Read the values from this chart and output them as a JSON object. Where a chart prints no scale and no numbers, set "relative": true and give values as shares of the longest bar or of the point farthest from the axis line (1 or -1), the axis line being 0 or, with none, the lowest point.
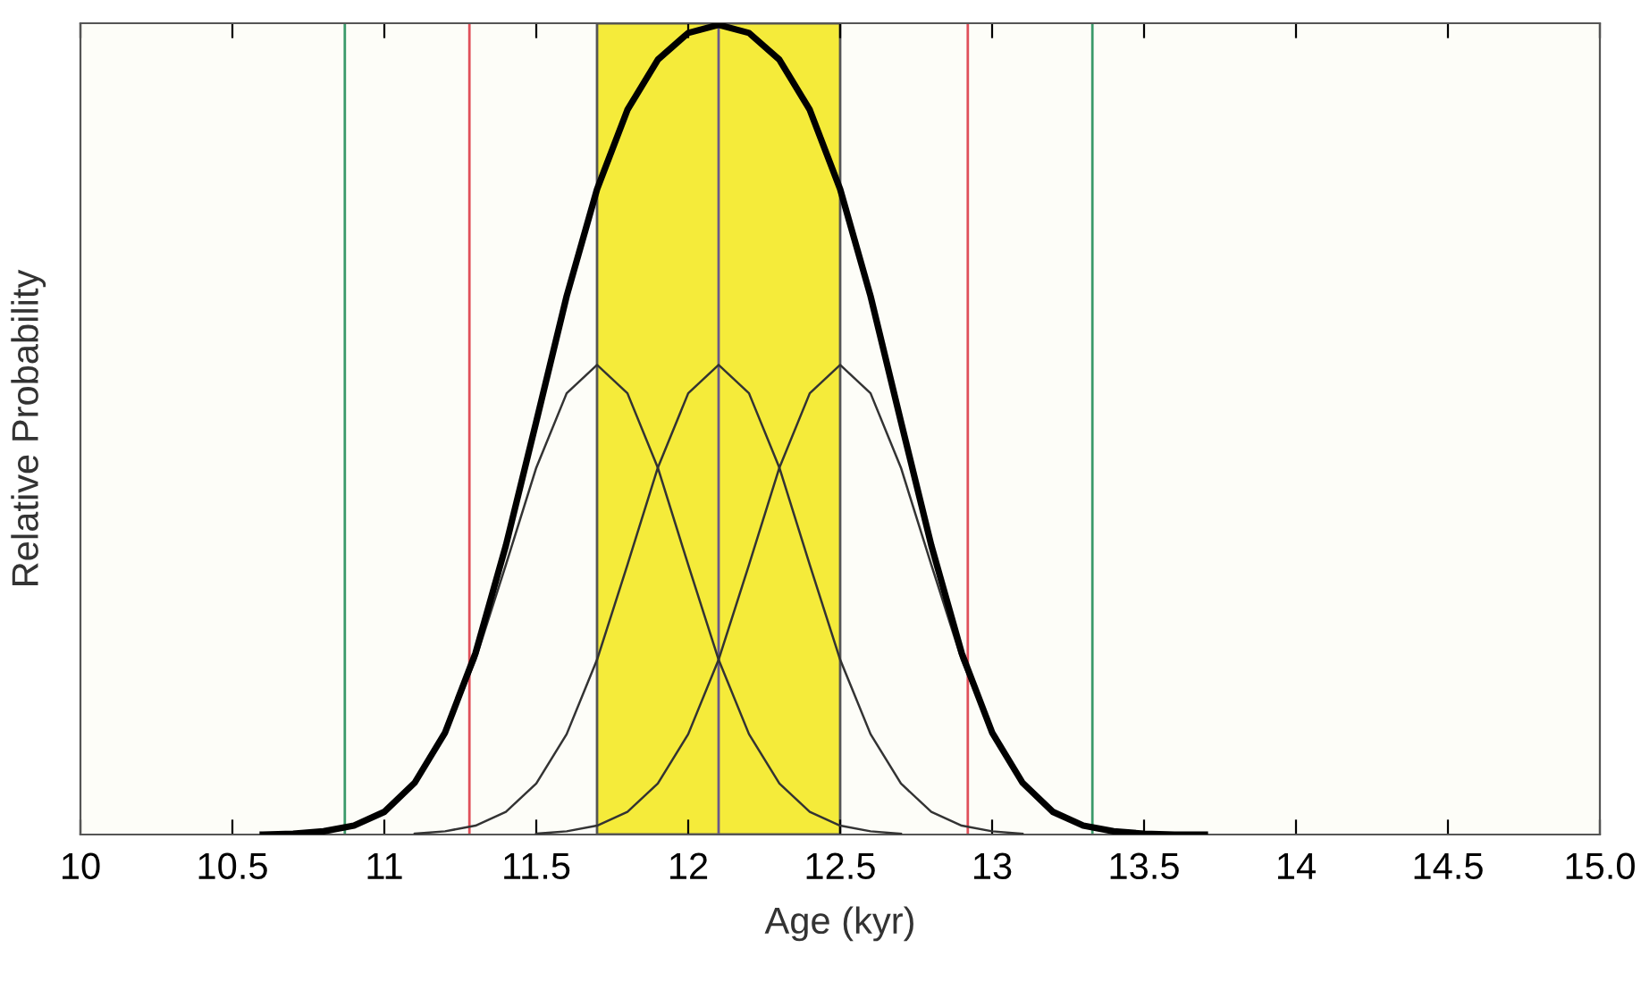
{
  "chart_data": {
    "type": "line",
    "xlabel": "Age (kyr)",
    "ylabel": "Relative Probability",
    "relative": true,
    "xlim": [
      10,
      15
    ],
    "xticks": [
      10,
      10.5,
      11,
      11.5,
      12,
      12.5,
      13,
      13.5,
      14,
      14.5,
      {
        "value": 15,
        "label": "15.0"
      }
    ],
    "tick_labels": "x",
    "grid": false,
    "marker": "none",
    "line_style": "solid",
    "series": [
      {
        "color": "#000000",
        "x": [
          10.6,
          10.7,
          10.8,
          10.9,
          11.0,
          11.1,
          11.2,
          11.3,
          11.4,
          11.5,
          11.6,
          11.7,
          11.8,
          11.9,
          12.0,
          12.1,
          12.2,
          12.3,
          12.4,
          12.5,
          12.6,
          12.7,
          12.8,
          12.9,
          13.0,
          13.1,
          13.2,
          13.3,
          13.4,
          13.5,
          13.6,
          13.7
        ],
        "values": [
          0.0,
          0.001,
          0.004,
          0.011,
          0.028,
          0.064,
          0.126,
          0.224,
          0.357,
          0.51,
          0.665,
          0.797,
          0.895,
          0.957,
          0.99,
          1.0,
          0.99,
          0.957,
          0.895,
          0.797,
          0.665,
          0.51,
          0.357,
          0.224,
          0.126,
          0.064,
          0.028,
          0.011,
          0.004,
          0.001,
          0.0,
          0.0
        ]
      },
      {
        "color": "#333333",
        "x": [
          10.7,
          10.8,
          10.9,
          11.0,
          11.1,
          11.2,
          11.3,
          11.4,
          11.5,
          11.6,
          11.7,
          11.8,
          11.9,
          12.0,
          12.1,
          12.2,
          12.3,
          12.4,
          12.5,
          12.6,
          12.7
        ],
        "values": [
          0.001,
          0.004,
          0.011,
          0.028,
          0.063,
          0.124,
          0.216,
          0.333,
          0.453,
          0.545,
          0.58,
          0.545,
          0.453,
          0.333,
          0.216,
          0.124,
          0.063,
          0.028,
          0.011,
          0.004,
          0.001
        ]
      },
      {
        "color": "#333333",
        "x": [
          11.1,
          11.2,
          11.3,
          11.4,
          11.5,
          11.6,
          11.7,
          11.8,
          11.9,
          12.0,
          12.1,
          12.2,
          12.3,
          12.4,
          12.5,
          12.6,
          12.7,
          12.8,
          12.9,
          13.0,
          13.1
        ],
        "values": [
          0.001,
          0.004,
          0.011,
          0.028,
          0.063,
          0.124,
          0.216,
          0.333,
          0.453,
          0.545,
          0.58,
          0.545,
          0.453,
          0.333,
          0.216,
          0.124,
          0.063,
          0.028,
          0.011,
          0.004,
          0.001
        ]
      },
      {
        "color": "#333333",
        "x": [
          11.5,
          11.6,
          11.7,
          11.8,
          11.9,
          12.0,
          12.1,
          12.2,
          12.3,
          12.4,
          12.5,
          12.6,
          12.7,
          12.8,
          12.9,
          13.0,
          13.1,
          13.2,
          13.3,
          13.4,
          13.5
        ],
        "values": [
          0.001,
          0.004,
          0.011,
          0.028,
          0.063,
          0.124,
          0.216,
          0.333,
          0.453,
          0.545,
          0.58,
          0.545,
          0.453,
          0.333,
          0.216,
          0.124,
          0.063,
          0.028,
          0.011,
          0.004,
          0.001
        ]
      }
    ],
    "bands": [
      {
        "axis": "x",
        "from": 11.7,
        "to": 12.5,
        "color": "#f5eb3a"
      }
    ],
    "ref_lines": [
      {
        "axis": "x",
        "value": 10.87,
        "color": "#3a9a6a"
      },
      {
        "axis": "x",
        "value": 11.28,
        "color": "#e0505a"
      },
      {
        "axis": "x",
        "value": 12.1,
        "color": "#6a5a8a"
      },
      {
        "axis": "x",
        "value": 12.92,
        "color": "#e0505a"
      },
      {
        "axis": "x",
        "value": 13.33,
        "color": "#3a9a6a"
      }
    ]
  }
}
